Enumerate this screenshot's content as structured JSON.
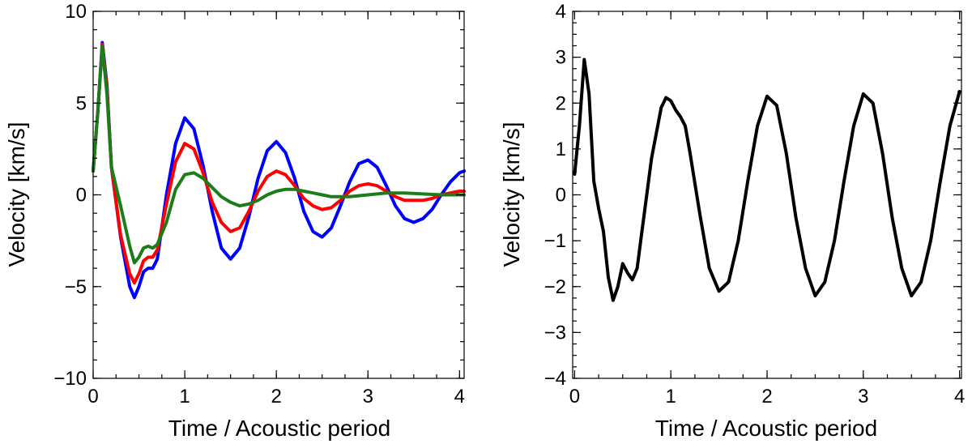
{
  "chart_data": [
    {
      "type": "line",
      "xlabel": "Time / Acoustic period",
      "ylabel": "Velocity [km/s]",
      "xlim": [
        0,
        4.05
      ],
      "ylim": [
        -10,
        10
      ],
      "xticks": [
        0,
        1,
        2,
        3,
        4
      ],
      "xtick_labels": [
        "0",
        "1",
        "2",
        "3",
        "4"
      ],
      "yticks": [
        -10,
        -5,
        0,
        5,
        10
      ],
      "ytick_labels": [
        "−10",
        "−5",
        "0",
        "5",
        "10"
      ],
      "y_minor_step": 1,
      "x_minor_step": 0.25,
      "grid": false,
      "series": [
        {
          "name": "blue",
          "color": "#0000ff",
          "x": [
            0,
            0.05,
            0.1,
            0.15,
            0.2,
            0.3,
            0.4,
            0.45,
            0.5,
            0.55,
            0.6,
            0.65,
            0.7,
            0.8,
            0.9,
            1.0,
            1.1,
            1.2,
            1.3,
            1.4,
            1.5,
            1.6,
            1.7,
            1.8,
            1.9,
            2.0,
            2.1,
            2.2,
            2.3,
            2.4,
            2.5,
            2.6,
            2.7,
            2.8,
            2.9,
            3.0,
            3.1,
            3.2,
            3.3,
            3.4,
            3.5,
            3.6,
            3.7,
            3.8,
            3.9,
            4.0,
            4.05
          ],
          "values": [
            1.3,
            4.5,
            8.3,
            6.0,
            1.5,
            -2.3,
            -5.0,
            -5.6,
            -5.0,
            -4.2,
            -4.0,
            -4.0,
            -3.5,
            0.0,
            2.8,
            4.2,
            3.6,
            1.6,
            -0.9,
            -2.9,
            -3.5,
            -2.9,
            -1.2,
            0.9,
            2.4,
            2.9,
            2.3,
            0.9,
            -0.9,
            -2.0,
            -2.3,
            -1.8,
            -0.6,
            0.7,
            1.7,
            1.9,
            1.5,
            0.5,
            -0.6,
            -1.3,
            -1.5,
            -1.3,
            -0.8,
            0.0,
            0.7,
            1.2,
            1.3
          ]
        },
        {
          "name": "red",
          "color": "#ff0000",
          "x": [
            0,
            0.05,
            0.1,
            0.15,
            0.2,
            0.3,
            0.4,
            0.45,
            0.5,
            0.55,
            0.6,
            0.65,
            0.7,
            0.8,
            0.9,
            1.0,
            1.1,
            1.2,
            1.3,
            1.4,
            1.5,
            1.6,
            1.7,
            1.8,
            1.9,
            2.0,
            2.1,
            2.2,
            2.3,
            2.4,
            2.5,
            2.6,
            2.7,
            2.8,
            2.9,
            3.0,
            3.1,
            3.2,
            3.3,
            3.4,
            3.5,
            3.6,
            3.7,
            3.8,
            3.9,
            4.0,
            4.05
          ],
          "values": [
            1.3,
            4.5,
            8.2,
            5.8,
            1.5,
            -2.2,
            -4.3,
            -4.8,
            -4.3,
            -3.6,
            -3.4,
            -3.4,
            -3.0,
            -0.5,
            1.8,
            2.8,
            2.5,
            1.2,
            -0.4,
            -1.5,
            -2.0,
            -1.8,
            -0.9,
            0.2,
            1.0,
            1.3,
            1.1,
            0.5,
            -0.2,
            -0.6,
            -0.8,
            -0.7,
            -0.3,
            0.2,
            0.5,
            0.6,
            0.5,
            0.2,
            -0.1,
            -0.3,
            -0.3,
            -0.3,
            -0.2,
            0.0,
            0.1,
            0.2,
            0.2
          ]
        },
        {
          "name": "green",
          "color": "#1a7d1a",
          "x": [
            0,
            0.05,
            0.1,
            0.15,
            0.2,
            0.3,
            0.4,
            0.45,
            0.5,
            0.55,
            0.6,
            0.65,
            0.7,
            0.8,
            0.9,
            1.0,
            1.1,
            1.2,
            1.3,
            1.4,
            1.5,
            1.6,
            1.7,
            1.8,
            1.9,
            2.0,
            2.1,
            2.2,
            2.3,
            2.4,
            2.5,
            2.6,
            2.8,
            3.0,
            3.2,
            3.4,
            3.6,
            3.8,
            4.0,
            4.05
          ],
          "values": [
            1.3,
            4.5,
            8.1,
            5.5,
            1.5,
            -0.6,
            -2.8,
            -3.7,
            -3.4,
            -2.9,
            -2.8,
            -2.9,
            -2.7,
            -1.5,
            0.3,
            1.1,
            1.2,
            0.9,
            0.4,
            -0.1,
            -0.4,
            -0.6,
            -0.5,
            -0.3,
            0.0,
            0.2,
            0.3,
            0.3,
            0.2,
            0.1,
            0.0,
            -0.1,
            -0.1,
            0.0,
            0.1,
            0.1,
            0.05,
            0.0,
            0.0,
            0.0
          ]
        }
      ]
    },
    {
      "type": "line",
      "xlabel": "Time / Acoustic period",
      "ylabel": "Velocity [km/s]",
      "xlim": [
        -0.02,
        4.02
      ],
      "ylim": [
        -4,
        4
      ],
      "xticks": [
        0,
        1,
        2,
        3,
        4
      ],
      "xtick_labels": [
        "0",
        "1",
        "2",
        "3",
        "4"
      ],
      "yticks": [
        -4,
        -3,
        -2,
        -1,
        0,
        1,
        2,
        3,
        4
      ],
      "ytick_labels": [
        "−4",
        "−3",
        "−2",
        "−1",
        "0",
        "1",
        "2",
        "3",
        "4"
      ],
      "y_minor_step": 0.25,
      "x_minor_step": 0.25,
      "grid": false,
      "series": [
        {
          "name": "black",
          "color": "#000000",
          "x": [
            0,
            0.05,
            0.1,
            0.15,
            0.2,
            0.25,
            0.3,
            0.35,
            0.4,
            0.45,
            0.5,
            0.55,
            0.6,
            0.65,
            0.7,
            0.8,
            0.9,
            0.95,
            1.0,
            1.05,
            1.1,
            1.15,
            1.2,
            1.3,
            1.4,
            1.5,
            1.6,
            1.7,
            1.8,
            1.9,
            2.0,
            2.1,
            2.2,
            2.3,
            2.4,
            2.5,
            2.6,
            2.7,
            2.8,
            2.9,
            3.0,
            3.1,
            3.2,
            3.3,
            3.4,
            3.5,
            3.6,
            3.7,
            3.8,
            3.9,
            4.0
          ],
          "values": [
            0.45,
            1.5,
            2.95,
            2.2,
            0.3,
            -0.3,
            -0.8,
            -1.8,
            -2.3,
            -2.0,
            -1.5,
            -1.7,
            -1.85,
            -1.6,
            -0.8,
            0.8,
            1.9,
            2.12,
            2.05,
            1.85,
            1.7,
            1.5,
            0.9,
            -0.4,
            -1.6,
            -2.1,
            -1.9,
            -1.0,
            0.3,
            1.5,
            2.15,
            1.95,
            0.9,
            -0.5,
            -1.6,
            -2.2,
            -1.9,
            -1.0,
            0.3,
            1.5,
            2.2,
            2.0,
            0.9,
            -0.5,
            -1.6,
            -2.2,
            -1.9,
            -1.0,
            0.3,
            1.5,
            2.25
          ]
        }
      ]
    }
  ]
}
